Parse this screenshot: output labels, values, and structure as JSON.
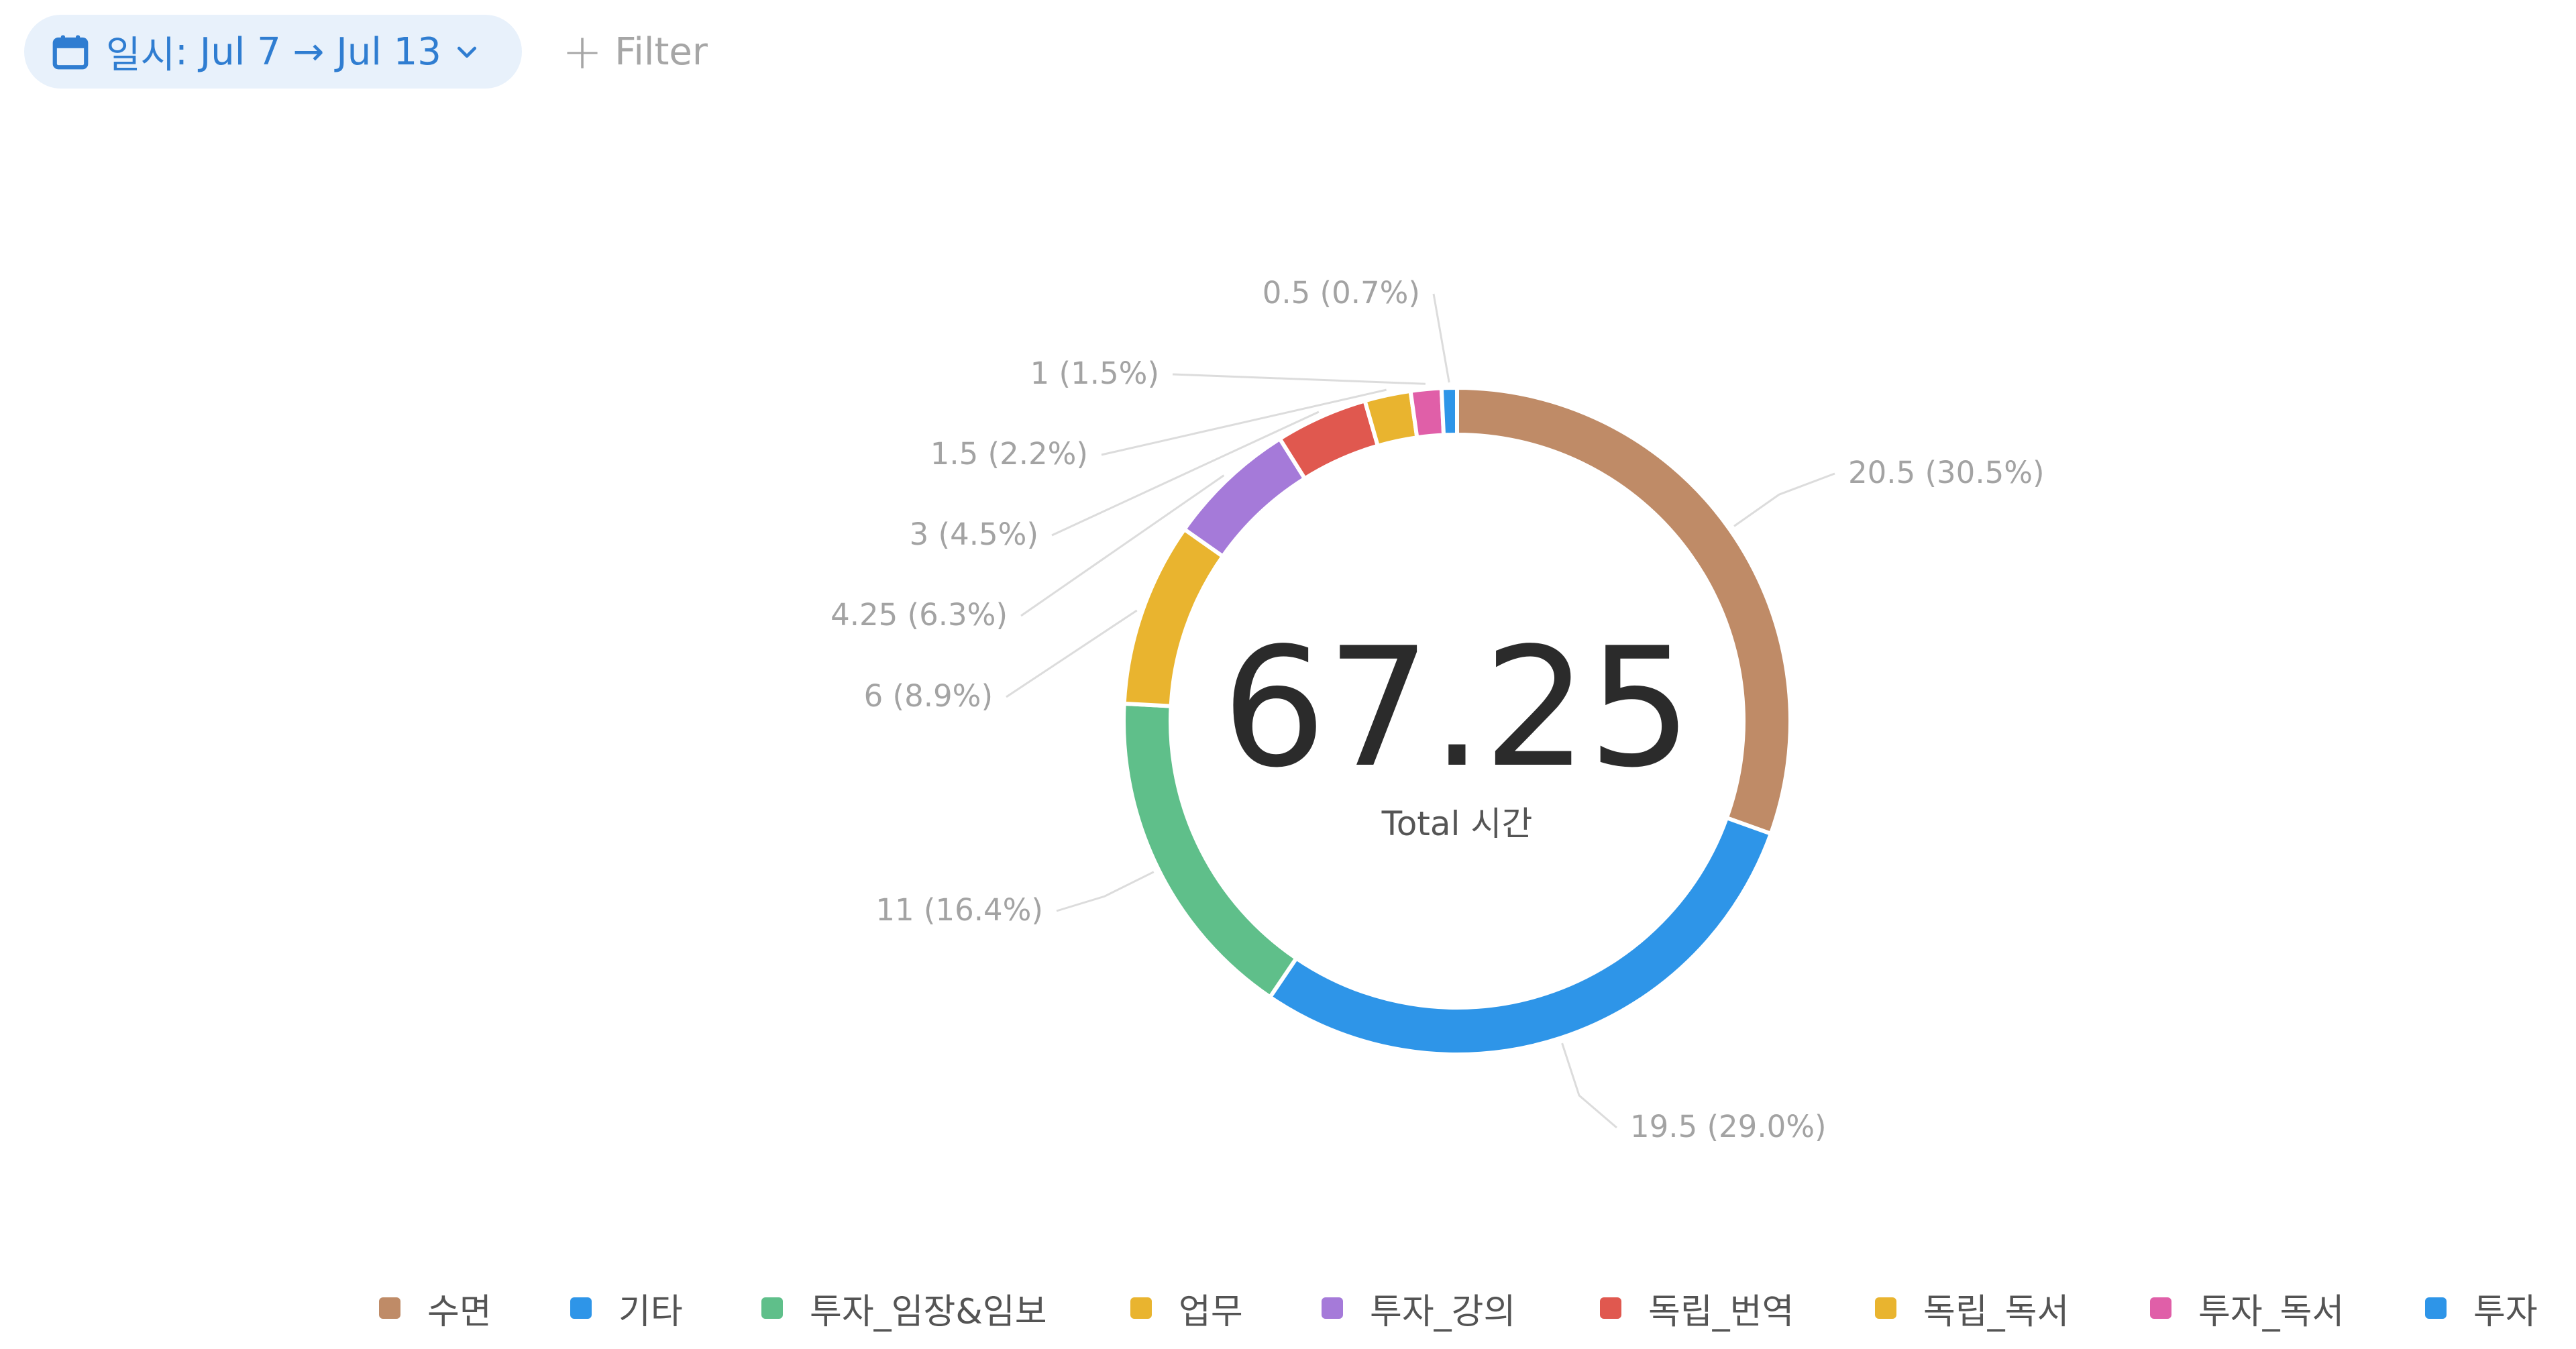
{
  "filter_bar": {
    "date_property": "일시",
    "date_range": "Jul 7 → Jul 13",
    "add_filter_label": "Filter"
  },
  "chart_data": {
    "type": "donut",
    "total_value": "67.25",
    "total_label": "Total 시간",
    "legend_placement": "bottom",
    "slices": [
      {
        "name": "수면",
        "value": 20.5,
        "percent": 30.5,
        "label": "20.5 (30.5%)",
        "color": "#bf8b67"
      },
      {
        "name": "기타",
        "value": 19.5,
        "percent": 29.0,
        "label": "19.5 (29.0%)",
        "color": "#2e95e8"
      },
      {
        "name": "투자_임장&임보",
        "value": 11,
        "percent": 16.4,
        "label": "11 (16.4%)",
        "color": "#5fbf8a"
      },
      {
        "name": "업무",
        "value": 6,
        "percent": 8.9,
        "label": "6 (8.9%)",
        "color": "#e9b42f"
      },
      {
        "name": "투자_강의",
        "value": 4.25,
        "percent": 6.3,
        "label": "4.25 (6.3%)",
        "color": "#a57ad9"
      },
      {
        "name": "독립_번역",
        "value": 3,
        "percent": 4.5,
        "label": "3 (4.5%)",
        "color": "#e0584f"
      },
      {
        "name": "독립_독서",
        "value": 1.5,
        "percent": 2.2,
        "label": "1.5 (2.2%)",
        "color": "#e9b42f"
      },
      {
        "name": "투자_독서",
        "value": 1,
        "percent": 1.5,
        "label": "1 (1.5%)",
        "color": "#e05fa8"
      },
      {
        "name": "투자",
        "value": 0.5,
        "percent": 0.7,
        "label": "0.5 (0.7%)",
        "color": "#2e95e8"
      }
    ]
  }
}
